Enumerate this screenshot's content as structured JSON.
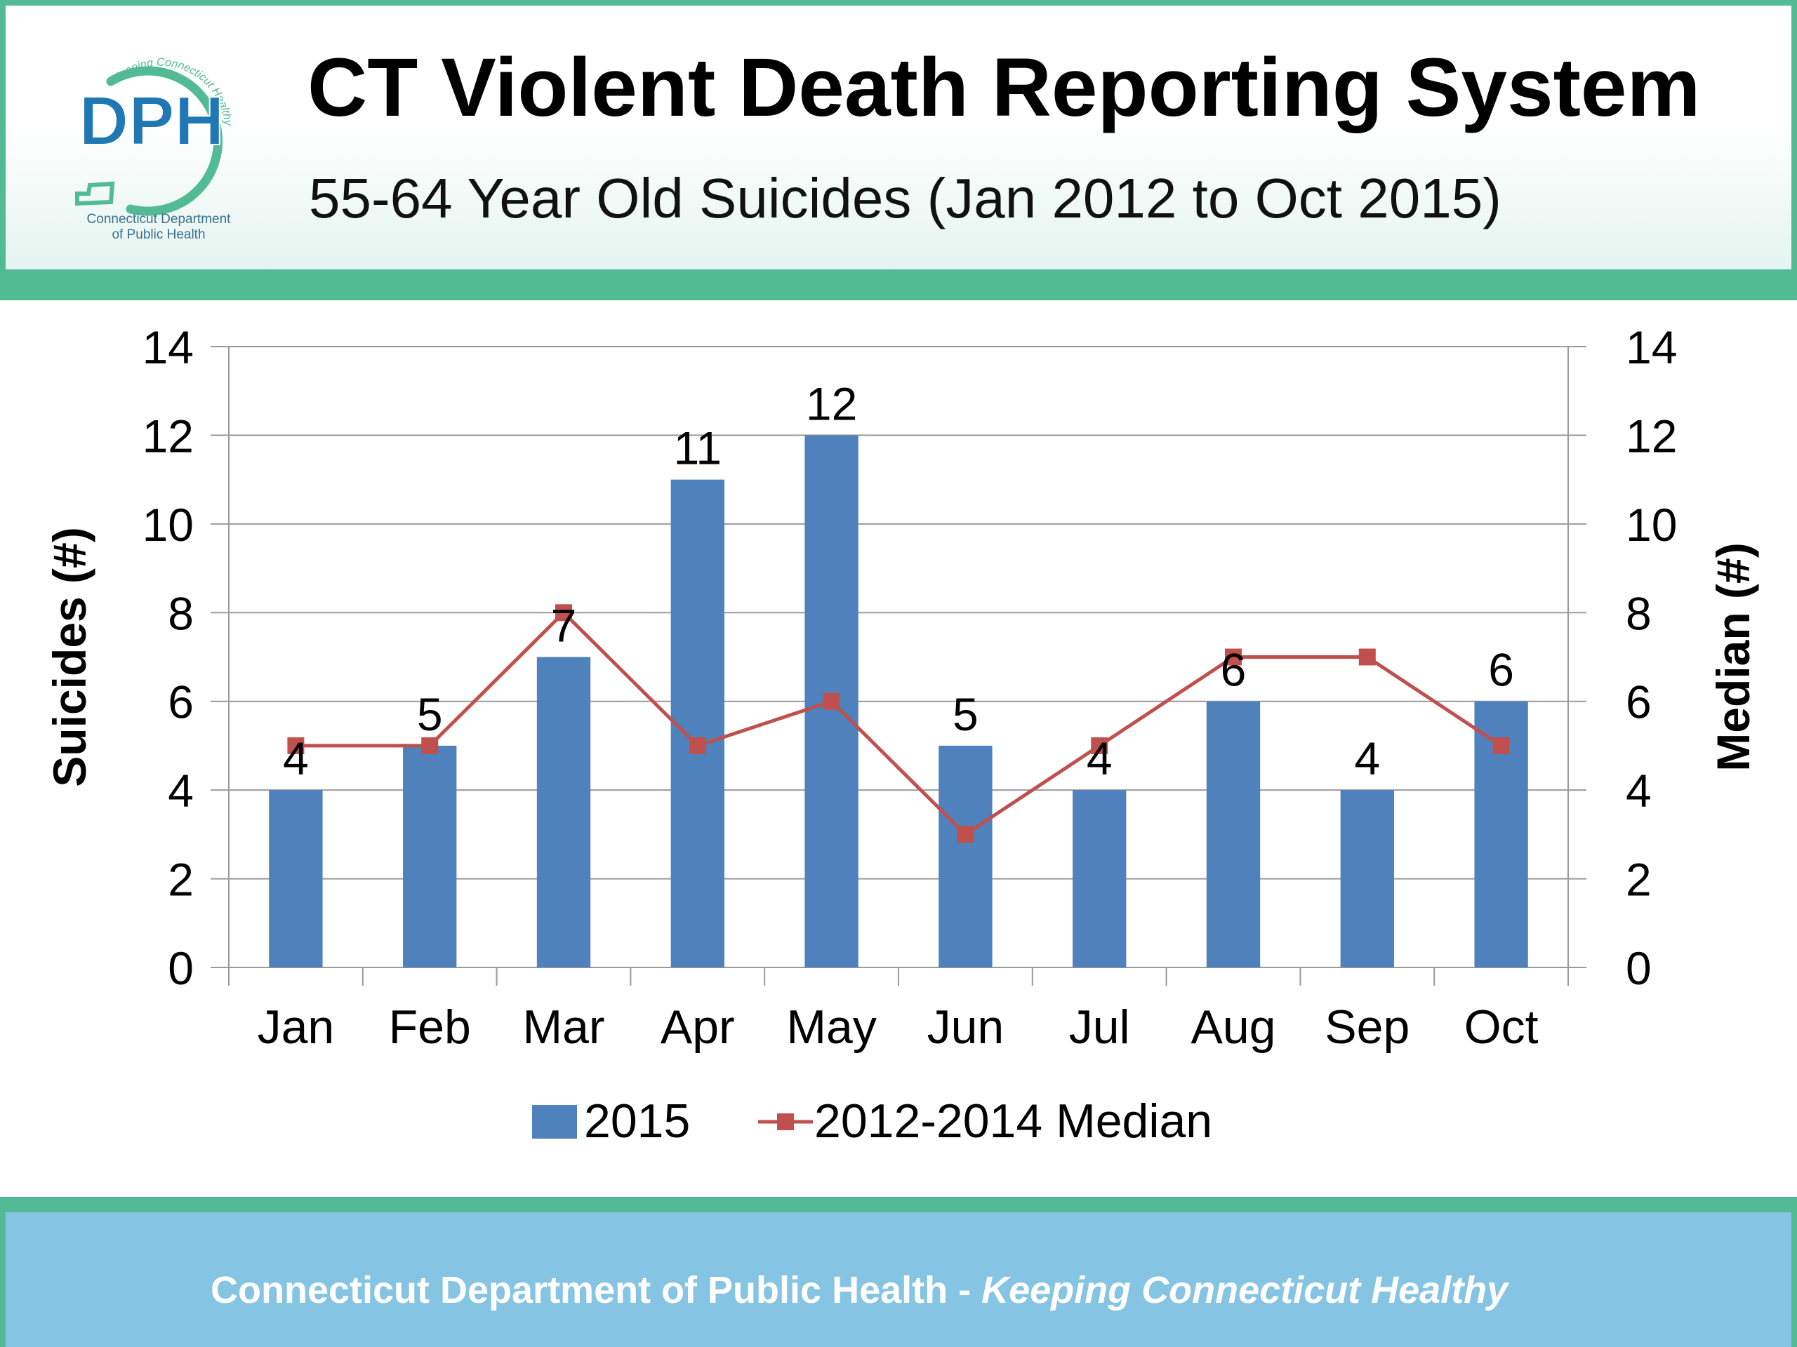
{
  "header": {
    "title": "CT Violent Death Reporting System",
    "subtitle": "55-64 Year Old Suicides (Jan 2012 to Oct 2015)"
  },
  "logo": {
    "letters": "DPH",
    "arc_text": "Keeping Connecticut Healthy",
    "line1": "Connecticut Department",
    "line2": "of Public Health",
    "colors": {
      "letters": "#1f78b4",
      "ring": "#52bb96"
    }
  },
  "footer": {
    "org": "Connecticut Department of Public Health",
    "separator": " - ",
    "tagline": "Keeping Connecticut Healthy"
  },
  "chart_data": {
    "type": "bar",
    "categories": [
      "Jan",
      "Feb",
      "Mar",
      "Apr",
      "May",
      "Jun",
      "Jul",
      "Aug",
      "Sep",
      "Oct"
    ],
    "series": [
      {
        "name": "2015",
        "type": "bar",
        "axis": "left",
        "color": "#4f81bd",
        "values": [
          4,
          5,
          7,
          11,
          12,
          5,
          4,
          6,
          4,
          6
        ]
      },
      {
        "name": "2012-2014 Median",
        "type": "line",
        "axis": "right",
        "color": "#c0504d",
        "marker": "square",
        "values": [
          5,
          5,
          8,
          5,
          6,
          3,
          5,
          7,
          7,
          5
        ]
      }
    ],
    "ylabel": "Suicides (#)",
    "y2label": "Median (#)",
    "ylim": [
      0,
      14
    ],
    "y2lim": [
      0,
      14
    ],
    "yticks": [
      0,
      2,
      4,
      6,
      8,
      10,
      12,
      14
    ],
    "data_labels": true,
    "grid": true,
    "legend_position": "bottom"
  }
}
